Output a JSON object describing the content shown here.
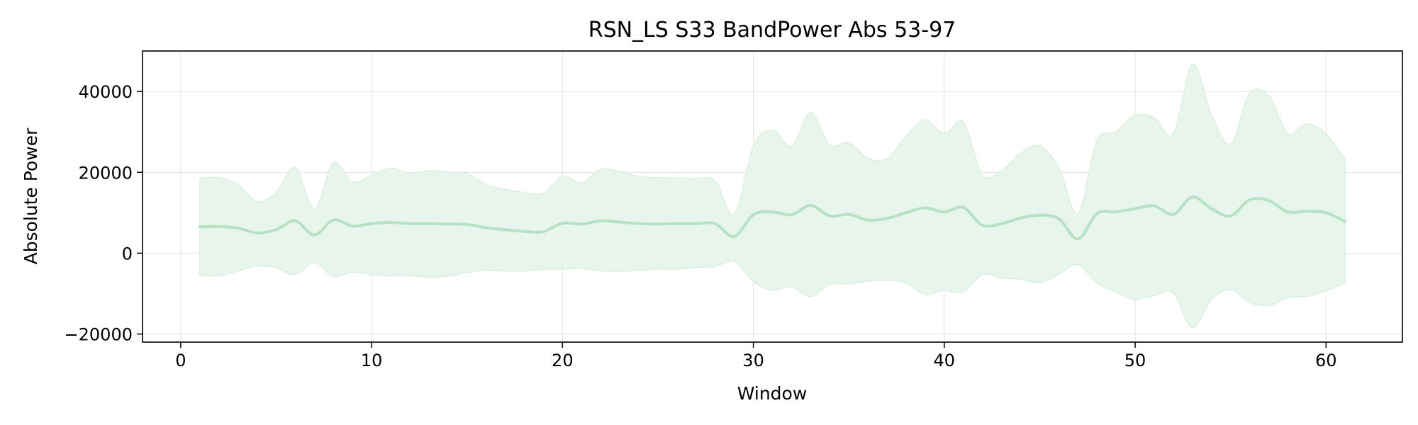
{
  "chart_data": {
    "type": "line",
    "title": "RSN_LS S33 BandPower Abs 53-97",
    "xlabel": "Window",
    "ylabel": "Absolute Power",
    "xlim": [
      -2,
      64
    ],
    "ylim": [
      -22000,
      50000
    ],
    "xticks": [
      0,
      10,
      20,
      30,
      40,
      50,
      60
    ],
    "xtick_labels": [
      "0",
      "10",
      "20",
      "30",
      "40",
      "50",
      "60"
    ],
    "yticks": [
      -20000,
      0,
      20000,
      40000
    ],
    "ytick_labels": [
      "−20000",
      "0",
      "20000",
      "40000"
    ],
    "grid": true,
    "legend": "none",
    "line_color": "#b5e2c4",
    "band_color": "#e8f5ec",
    "band_edge_color": "#d6eedd",
    "series": [
      {
        "x": [
          1,
          2,
          3,
          4,
          5,
          6,
          7,
          8,
          9,
          10,
          11,
          12,
          13,
          14,
          15,
          16,
          17,
          18,
          19,
          20,
          21,
          22,
          23,
          24,
          25,
          26,
          27,
          28,
          29,
          30,
          31,
          32,
          33,
          34,
          35,
          36,
          37,
          38,
          39,
          40,
          41,
          42,
          43,
          44,
          45,
          46,
          47,
          48,
          49,
          50,
          51,
          52,
          53,
          54,
          55,
          56,
          57,
          58,
          59,
          60,
          61
        ],
        "mean": [
          6500,
          6600,
          6200,
          5000,
          5800,
          8000,
          4500,
          8200,
          6700,
          7300,
          7600,
          7300,
          7300,
          7200,
          7100,
          6300,
          5800,
          5400,
          5300,
          7400,
          7200,
          8000,
          7700,
          7300,
          7200,
          7300,
          7300,
          7300,
          4100,
          9500,
          10200,
          9500,
          11800,
          9200,
          9600,
          8200,
          8600,
          10000,
          11200,
          10200,
          11300,
          6900,
          7300,
          8700,
          9400,
          8500,
          3500,
          9800,
          10200,
          11000,
          11700,
          9600,
          13900,
          11000,
          9200,
          13200,
          13000,
          10200,
          10400,
          10000,
          7800
        ],
        "upper": [
          18500,
          18700,
          17000,
          12800,
          15000,
          21200,
          10800,
          22300,
          17600,
          19300,
          21000,
          19800,
          20400,
          20100,
          19700,
          17000,
          15800,
          15000,
          14800,
          19000,
          17400,
          20700,
          20200,
          19000,
          18700,
          18600,
          18500,
          17900,
          9600,
          26500,
          30500,
          26500,
          34800,
          26800,
          27300,
          23500,
          23400,
          29000,
          33000,
          29500,
          32400,
          19400,
          20500,
          24700,
          26600,
          21200,
          9800,
          27900,
          30000,
          34100,
          33500,
          29400,
          46700,
          34200,
          27000,
          39500,
          39000,
          29600,
          32000,
          29500,
          23200
        ],
        "lower": [
          -5500,
          -5600,
          -4400,
          -3200,
          -3600,
          -5300,
          -2300,
          -5800,
          -4700,
          -5300,
          -5600,
          -5600,
          -6000,
          -5700,
          -4800,
          -4300,
          -4400,
          -4400,
          -4000,
          -4000,
          -3800,
          -4400,
          -4500,
          -4200,
          -3900,
          -4000,
          -3500,
          -3300,
          -2000,
          -7000,
          -9200,
          -8300,
          -10800,
          -7700,
          -7600,
          -6900,
          -6700,
          -7400,
          -10200,
          -9200,
          -9600,
          -5300,
          -6200,
          -6500,
          -7300,
          -5200,
          -2800,
          -7400,
          -9600,
          -11400,
          -10500,
          -9800,
          -18500,
          -11400,
          -9000,
          -12200,
          -13000,
          -11000,
          -10700,
          -9300,
          -7400
        ]
      }
    ]
  }
}
